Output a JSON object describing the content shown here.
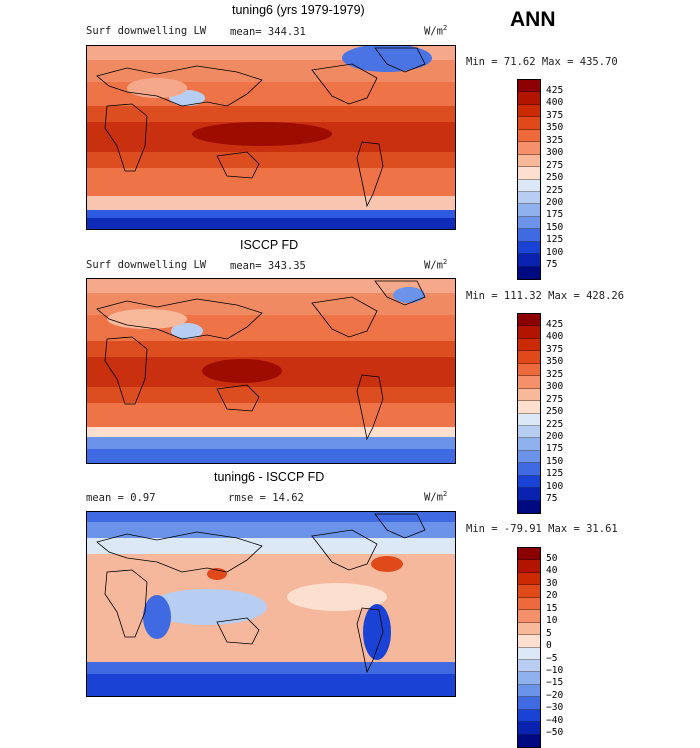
{
  "season": "ANN",
  "unit_base": "W/m",
  "unit_exp": "2",
  "panels": [
    {
      "title": "tuning6 (yrs 1979-1979)",
      "variable": "Surf downwelling LW",
      "mean_text": "mean= 344.31",
      "minmax_text": "Min =  71.62 Max = 435.70",
      "colorbar": {
        "levels": [
          "425",
          "400",
          "375",
          "350",
          "325",
          "300",
          "275",
          "250",
          "225",
          "200",
          "175",
          "150",
          "125",
          "100",
          "75"
        ],
        "colors": [
          "#8b0000",
          "#b31400",
          "#cc2a00",
          "#e04a1a",
          "#ec6a3c",
          "#f4906a",
          "#f8b89a",
          "#fcdfcf",
          "#dde8f7",
          "#b8cdf2",
          "#8fb1ee",
          "#6b93ea",
          "#3f6ae2",
          "#1a43d6",
          "#0a22b0",
          "#000a80"
        ]
      }
    },
    {
      "title": "ISCCP FD",
      "variable": "Surf downwelling LW",
      "mean_text": "mean= 343.35",
      "minmax_text": "Min = 111.32 Max = 428.26",
      "colorbar": {
        "levels": [
          "425",
          "400",
          "375",
          "350",
          "325",
          "300",
          "275",
          "250",
          "225",
          "200",
          "175",
          "150",
          "125",
          "100",
          "75"
        ],
        "colors": [
          "#8b0000",
          "#b31400",
          "#cc2a00",
          "#e04a1a",
          "#ec6a3c",
          "#f4906a",
          "#f8b89a",
          "#fcdfcf",
          "#dde8f7",
          "#b8cdf2",
          "#8fb1ee",
          "#6b93ea",
          "#3f6ae2",
          "#1a43d6",
          "#0a22b0",
          "#000a80"
        ]
      }
    },
    {
      "title": "tuning6 - ISCCP FD",
      "mean_text": "mean =    0.97",
      "rmse_text": "rmse =  14.62",
      "minmax_text": "Min = -79.91 Max =  31.61",
      "colorbar": {
        "levels": [
          "50",
          "40",
          "30",
          "20",
          "15",
          "10",
          "5",
          "0",
          "−5",
          "−10",
          "−15",
          "−20",
          "−30",
          "−40",
          "−50"
        ],
        "colors": [
          "#8b0000",
          "#b31400",
          "#cc2a00",
          "#e04a1a",
          "#ec6a3c",
          "#f4906a",
          "#f8b89a",
          "#fcdfcf",
          "#dde8f7",
          "#b8cdf2",
          "#8fb1ee",
          "#6b93ea",
          "#3f6ae2",
          "#1a43d6",
          "#0a22b0",
          "#000a80"
        ]
      }
    }
  ]
}
